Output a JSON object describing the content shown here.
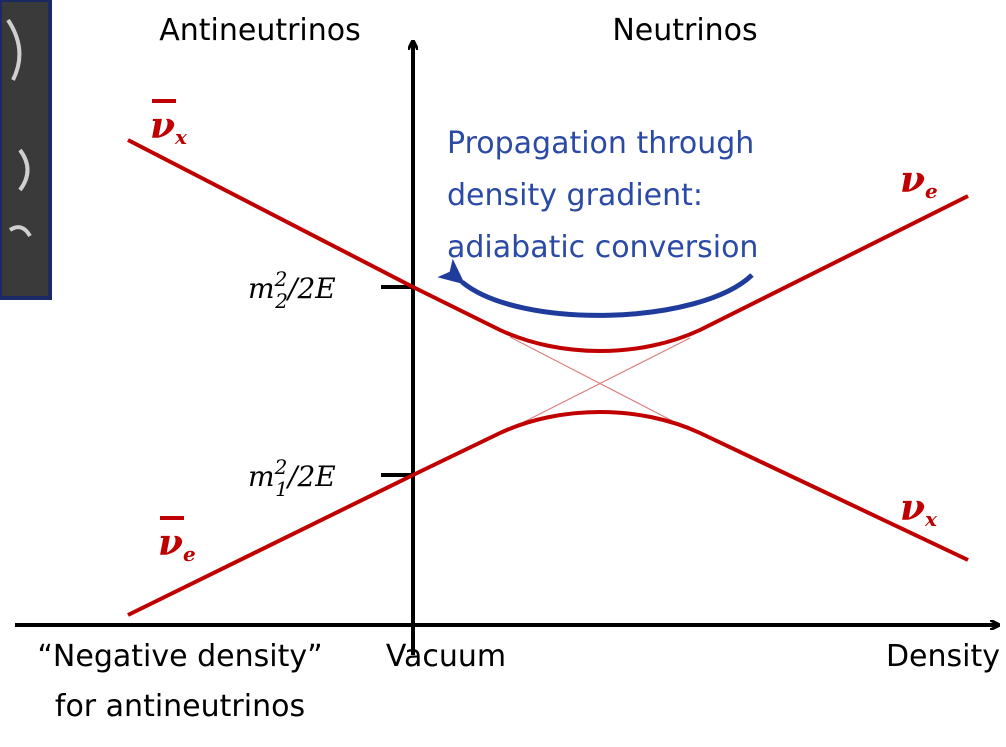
{
  "header": {
    "left": "Antineutrinos",
    "right": "Neutrinos"
  },
  "annotation": {
    "lines": [
      "Propagation through",
      "density gradient:",
      "adiabatic conversion"
    ]
  },
  "curve_labels": [
    {
      "symbol": "ν",
      "sub": "x"
    },
    {
      "symbol": "ν",
      "sub": "e"
    },
    {
      "symbol": "ν",
      "sub": "e"
    },
    {
      "symbol": "ν",
      "sub": "x"
    }
  ],
  "levels": [
    {
      "base": "m",
      "sup": "2",
      "sub": "2",
      "rest": "/2E"
    },
    {
      "base": "m",
      "sup": "2",
      "sub": "1",
      "rest": "/2E"
    }
  ],
  "x_axis": {
    "left": [
      "“Negative density”",
      "for antineutrinos"
    ],
    "center": "Vacuum",
    "right": "Density"
  }
}
